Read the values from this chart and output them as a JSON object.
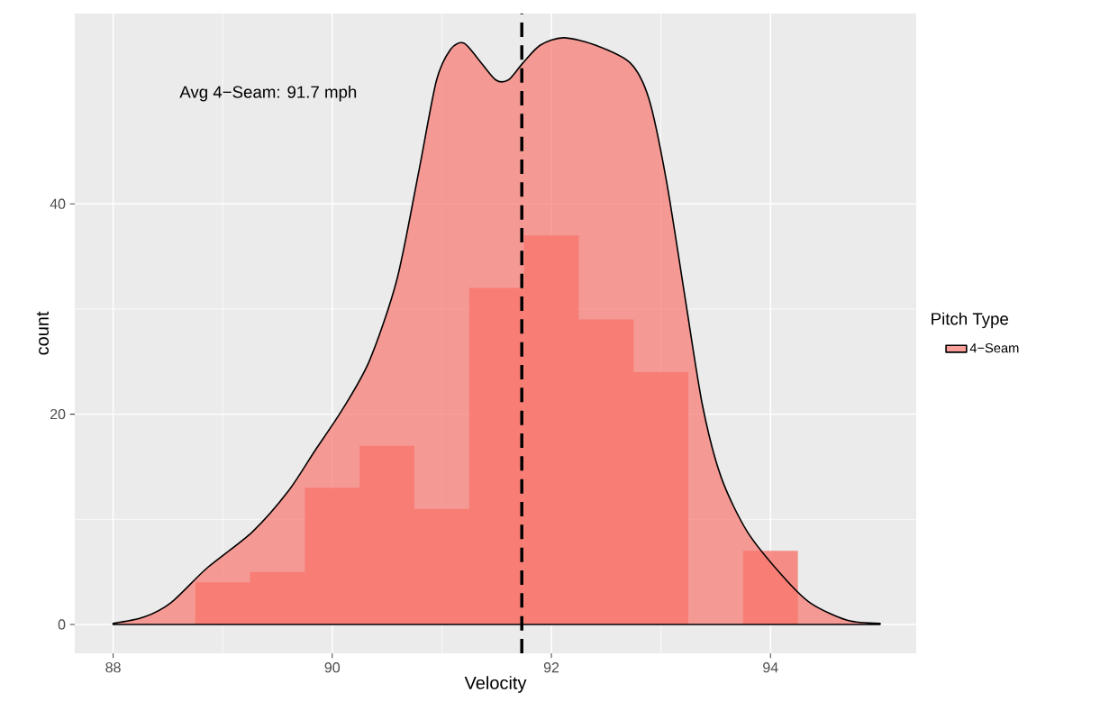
{
  "chart_data": {
    "type": "histogram",
    "xlabel": "Velocity",
    "ylabel": "count",
    "legend_title": "Pitch Type",
    "series": [
      {
        "color": "#f8766d",
        "bins": [
          88.25,
          88.75,
          89.25,
          89.75,
          90.25,
          90.75,
          91.25,
          91.75,
          92.25,
          92.75,
          93.25,
          93.75,
          94.25,
          94.75
        ],
        "values": [
          0,
          4,
          5,
          13,
          17,
          11,
          32,
          37,
          29,
          24,
          0,
          7,
          0
        ]
      },
      {
        "type": "area",
        "name": "4−Seam",
        "color": "#f8766d",
        "x": [
          88,
          88.28,
          88.53,
          88.86,
          89.27,
          89.6,
          89.84,
          90.09,
          90.34,
          90.59,
          90.79,
          90.95,
          91.08,
          91.2,
          91.33,
          91.49,
          91.61,
          91.74,
          91.9,
          92.11,
          92.4,
          92.72,
          92.89,
          93.05,
          93.22,
          93.38,
          93.55,
          93.79,
          94.12,
          94.37,
          94.7,
          95
        ],
        "values": [
          0.1,
          0.7,
          2.1,
          5.4,
          8.8,
          12.7,
          16.5,
          20.4,
          25.1,
          32.8,
          43.1,
          51.7,
          54.7,
          55.3,
          53.8,
          51.8,
          51.8,
          53.4,
          55.1,
          55.8,
          55.1,
          53.4,
          50.0,
          42.2,
          31.1,
          20.8,
          14.0,
          8.8,
          4.5,
          2.0,
          0.4,
          0.1
        ]
      }
    ],
    "ref_lines": [
      {
        "axis": "x",
        "value": 91.73,
        "color": "#000000",
        "line_style": "dashed"
      }
    ],
    "annotations": [
      "Avg 4−Seam: 91.7 mph"
    ],
    "xlim": [
      87.65,
      95.33
    ],
    "ylim": [
      -2.74,
      58.1
    ],
    "xticks": [
      88,
      90,
      92,
      94
    ],
    "yticks": [
      0,
      20,
      40
    ],
    "grid": true,
    "legend": "right"
  }
}
